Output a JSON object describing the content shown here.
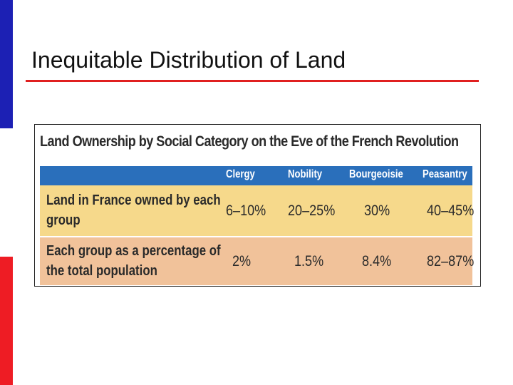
{
  "slide": {
    "title": "Inequitable Distribution of Land"
  },
  "table": {
    "heading": "Land Ownership by Social Category on the Eve of the French Revolution",
    "columns": [
      "Clergy",
      "Nobility",
      "Bourgeoisie",
      "Peasantry"
    ],
    "rows": [
      {
        "label": "Land in France owned by each group",
        "values": [
          "6–10%",
          "20–25%",
          "30%",
          "40–45%"
        ]
      },
      {
        "label": "Each group as a percentage of the total population",
        "values": [
          "2%",
          "1.5%",
          "8.4%",
          "82–87%"
        ]
      }
    ]
  },
  "colors": {
    "accent_blue": "#1c20b4",
    "accent_red": "#ee1c24",
    "header_blue": "#2a6fbb",
    "row_yellow": "#f6d98b",
    "row_peach": "#f1c29a"
  }
}
